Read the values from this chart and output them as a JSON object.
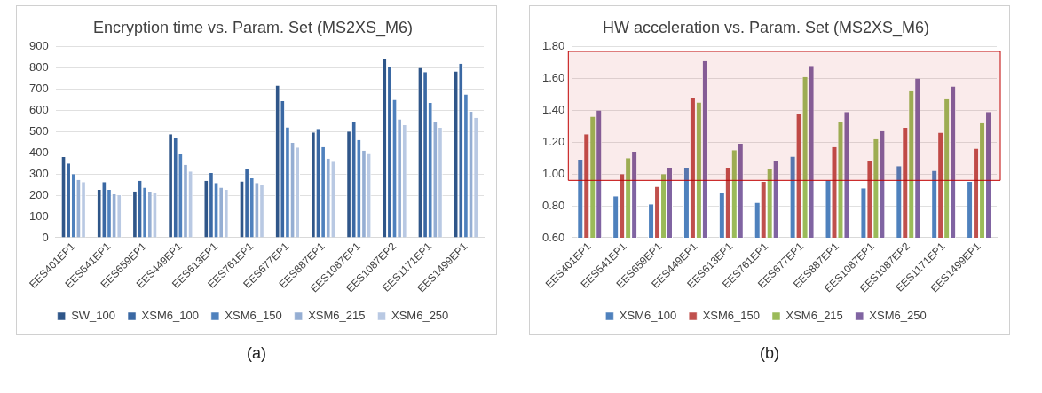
{
  "chart_data": [
    {
      "type": "bar",
      "title": "Encryption time vs. Param. Set (MS2XS_M6)",
      "categories": [
        "EES401EP1",
        "EES541EP1",
        "EES659EP1",
        "EES449EP1",
        "EES613EP1",
        "EES761EP1",
        "EES677EP1",
        "EES887EP1",
        "EES1087EP1",
        "EES1087EP2",
        "EES1171EP1",
        "EES1499EP1"
      ],
      "series": [
        {
          "name": "SW_100",
          "color": "#2f5689",
          "values": [
            380,
            225,
            218,
            488,
            268,
            265,
            717,
            496,
            500,
            842,
            800,
            783
          ]
        },
        {
          "name": "XSM6_100",
          "color": "#3a68a3",
          "values": [
            350,
            262,
            268,
            468,
            305,
            323,
            643,
            513,
            545,
            805,
            780,
            820
          ]
        },
        {
          "name": "XSM6_150",
          "color": "#4f81bd",
          "values": [
            300,
            225,
            236,
            393,
            258,
            280,
            520,
            427,
            460,
            650,
            635,
            675
          ]
        },
        {
          "name": "XSM6_215",
          "color": "#95aed3",
          "values": [
            272,
            205,
            217,
            343,
            236,
            258,
            447,
            373,
            410,
            558,
            547,
            593
          ]
        },
        {
          "name": "XSM6_250",
          "color": "#b9c9e3",
          "values": [
            262,
            200,
            210,
            312,
            225,
            248,
            425,
            358,
            395,
            530,
            518,
            565
          ]
        }
      ],
      "ylim": [
        0,
        900
      ],
      "yticks": [
        0,
        100,
        200,
        300,
        400,
        500,
        600,
        700,
        800,
        900
      ],
      "grid": "y",
      "legend": "bottom",
      "annotations": [
        "(a)"
      ]
    },
    {
      "type": "bar",
      "title": "HW acceleration vs. Param. Set (MS2XS_M6)",
      "categories": [
        "EES401EP1",
        "EES541EP1",
        "EES659EP1",
        "EES449EP1",
        "EES613EP1",
        "EES761EP1",
        "EES677EP1",
        "EES887EP1",
        "EES1087EP1",
        "EES1087EP2",
        "EES1171EP1",
        "EES1499EP1"
      ],
      "series": [
        {
          "name": "XSM6_100",
          "color": "#4f81bd",
          "values": [
            1.09,
            0.86,
            0.81,
            1.04,
            0.88,
            0.82,
            1.11,
            0.96,
            0.91,
            1.05,
            1.02,
            0.95
          ]
        },
        {
          "name": "XSM6_150",
          "color": "#c0504d",
          "values": [
            1.25,
            1.0,
            0.92,
            1.48,
            1.04,
            0.95,
            1.38,
            1.17,
            1.08,
            1.29,
            1.26,
            1.16
          ]
        },
        {
          "name": "XSM6_215",
          "color": "#9bbb59",
          "values": [
            1.36,
            1.1,
            1.0,
            1.45,
            1.15,
            1.03,
            1.61,
            1.33,
            1.22,
            1.52,
            1.47,
            1.32
          ]
        },
        {
          "name": "XSM6_250",
          "color": "#8064a2",
          "values": [
            1.4,
            1.14,
            1.04,
            1.71,
            1.19,
            1.08,
            1.68,
            1.39,
            1.27,
            1.6,
            1.55,
            1.39
          ]
        }
      ],
      "ylim": [
        0.6,
        1.8
      ],
      "yticks": [
        {
          "value": 0.6,
          "label": "0.60"
        },
        {
          "value": 0.8,
          "label": "0.80"
        },
        {
          "value": 1.0,
          "label": "1.00"
        },
        {
          "value": 1.2,
          "label": "1.20"
        },
        {
          "value": 1.4,
          "label": "1.40"
        },
        {
          "value": 1.6,
          "label": "1.60"
        },
        {
          "value": 1.8,
          "label": "1.80"
        }
      ],
      "bands": [
        {
          "axis": "y",
          "from": 0.96,
          "to": 1.77,
          "color": "#c00000"
        }
      ],
      "grid": "y",
      "legend": "bottom",
      "annotations": [
        "(b)"
      ]
    }
  ]
}
